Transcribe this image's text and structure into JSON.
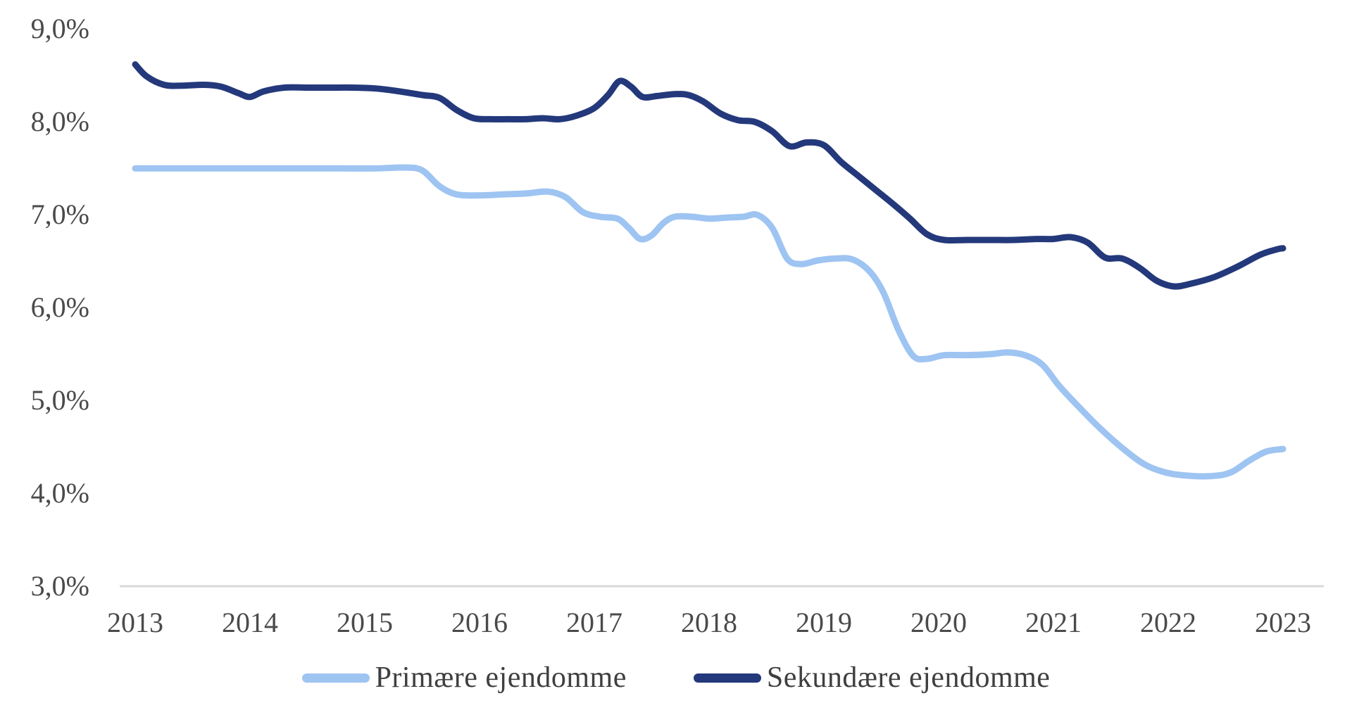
{
  "chart_data": {
    "type": "line",
    "title": "",
    "xlabel": "",
    "ylabel": "",
    "xlim": [
      2013,
      2023
    ],
    "ylim": [
      3.0,
      9.0
    ],
    "grid": false,
    "legend_position": "bottom-center",
    "axis_line_color": "#d9d9d9",
    "tick_label_color": "#4a4a4a",
    "x_ticks": {
      "values": [
        2013,
        2014,
        2015,
        2016,
        2017,
        2018,
        2019,
        2020,
        2021,
        2022,
        2023
      ],
      "labels": [
        "2013",
        "2014",
        "2015",
        "2016",
        "2017",
        "2018",
        "2019",
        "2020",
        "2021",
        "2022",
        "2023"
      ]
    },
    "y_ticks": {
      "values": [
        9,
        8,
        7,
        6,
        5,
        4,
        3
      ],
      "labels": [
        "9,0%",
        "8,0%",
        "7,0%",
        "6,0%",
        "5,0%",
        "4,0%",
        "3,0%"
      ]
    },
    "series": [
      {
        "name": "Primære ejendomme",
        "color": "#9ec4f2",
        "smooth": true,
        "points": [
          [
            2013.0,
            7.49
          ],
          [
            2013.3,
            7.49
          ],
          [
            2013.6,
            7.49
          ],
          [
            2013.9,
            7.49
          ],
          [
            2014.2,
            7.49
          ],
          [
            2014.5,
            7.49
          ],
          [
            2014.8,
            7.49
          ],
          [
            2015.1,
            7.49
          ],
          [
            2015.35,
            7.5
          ],
          [
            2015.5,
            7.47
          ],
          [
            2015.65,
            7.3
          ],
          [
            2015.8,
            7.21
          ],
          [
            2016.0,
            7.2
          ],
          [
            2016.2,
            7.21
          ],
          [
            2016.4,
            7.22
          ],
          [
            2016.6,
            7.24
          ],
          [
            2016.75,
            7.18
          ],
          [
            2016.9,
            7.02
          ],
          [
            2017.05,
            6.97
          ],
          [
            2017.2,
            6.95
          ],
          [
            2017.3,
            6.85
          ],
          [
            2017.4,
            6.73
          ],
          [
            2017.5,
            6.77
          ],
          [
            2017.6,
            6.9
          ],
          [
            2017.7,
            6.97
          ],
          [
            2017.85,
            6.97
          ],
          [
            2018.0,
            6.95
          ],
          [
            2018.15,
            6.96
          ],
          [
            2018.3,
            6.97
          ],
          [
            2018.42,
            6.99
          ],
          [
            2018.55,
            6.85
          ],
          [
            2018.68,
            6.52
          ],
          [
            2018.8,
            6.46
          ],
          [
            2018.95,
            6.5
          ],
          [
            2019.1,
            6.52
          ],
          [
            2019.25,
            6.51
          ],
          [
            2019.4,
            6.38
          ],
          [
            2019.52,
            6.15
          ],
          [
            2019.65,
            5.75
          ],
          [
            2019.78,
            5.47
          ],
          [
            2019.9,
            5.44
          ],
          [
            2020.05,
            5.48
          ],
          [
            2020.25,
            5.48
          ],
          [
            2020.45,
            5.49
          ],
          [
            2020.6,
            5.51
          ],
          [
            2020.75,
            5.48
          ],
          [
            2020.9,
            5.38
          ],
          [
            2021.05,
            5.15
          ],
          [
            2021.2,
            4.95
          ],
          [
            2021.4,
            4.7
          ],
          [
            2021.6,
            4.48
          ],
          [
            2021.8,
            4.3
          ],
          [
            2022.0,
            4.21
          ],
          [
            2022.2,
            4.18
          ],
          [
            2022.4,
            4.18
          ],
          [
            2022.55,
            4.22
          ],
          [
            2022.7,
            4.34
          ],
          [
            2022.85,
            4.44
          ],
          [
            2023.0,
            4.47
          ]
        ]
      },
      {
        "name": "Sekundære ejendomme",
        "color": "#24397b",
        "smooth": true,
        "points": [
          [
            2013.0,
            8.61
          ],
          [
            2013.1,
            8.48
          ],
          [
            2013.25,
            8.39
          ],
          [
            2013.4,
            8.38
          ],
          [
            2013.6,
            8.39
          ],
          [
            2013.75,
            8.37
          ],
          [
            2013.9,
            8.3
          ],
          [
            2014.0,
            8.26
          ],
          [
            2014.12,
            8.32
          ],
          [
            2014.3,
            8.36
          ],
          [
            2014.5,
            8.36
          ],
          [
            2014.7,
            8.36
          ],
          [
            2014.9,
            8.36
          ],
          [
            2015.1,
            8.35
          ],
          [
            2015.3,
            8.32
          ],
          [
            2015.5,
            8.28
          ],
          [
            2015.65,
            8.25
          ],
          [
            2015.8,
            8.12
          ],
          [
            2015.95,
            8.03
          ],
          [
            2016.1,
            8.02
          ],
          [
            2016.25,
            8.02
          ],
          [
            2016.4,
            8.02
          ],
          [
            2016.55,
            8.03
          ],
          [
            2016.7,
            8.02
          ],
          [
            2016.85,
            8.06
          ],
          [
            2017.0,
            8.14
          ],
          [
            2017.12,
            8.28
          ],
          [
            2017.22,
            8.43
          ],
          [
            2017.32,
            8.37
          ],
          [
            2017.42,
            8.26
          ],
          [
            2017.55,
            8.27
          ],
          [
            2017.7,
            8.29
          ],
          [
            2017.82,
            8.28
          ],
          [
            2017.95,
            8.21
          ],
          [
            2018.1,
            8.08
          ],
          [
            2018.25,
            8.01
          ],
          [
            2018.4,
            7.99
          ],
          [
            2018.55,
            7.89
          ],
          [
            2018.7,
            7.73
          ],
          [
            2018.85,
            7.77
          ],
          [
            2019.0,
            7.74
          ],
          [
            2019.15,
            7.56
          ],
          [
            2019.3,
            7.41
          ],
          [
            2019.45,
            7.26
          ],
          [
            2019.6,
            7.11
          ],
          [
            2019.75,
            6.95
          ],
          [
            2019.9,
            6.78
          ],
          [
            2020.05,
            6.72
          ],
          [
            2020.25,
            6.72
          ],
          [
            2020.45,
            6.72
          ],
          [
            2020.65,
            6.72
          ],
          [
            2020.85,
            6.73
          ],
          [
            2021.0,
            6.73
          ],
          [
            2021.15,
            6.75
          ],
          [
            2021.3,
            6.69
          ],
          [
            2021.45,
            6.53
          ],
          [
            2021.6,
            6.52
          ],
          [
            2021.75,
            6.42
          ],
          [
            2021.9,
            6.28
          ],
          [
            2022.05,
            6.22
          ],
          [
            2022.2,
            6.25
          ],
          [
            2022.4,
            6.32
          ],
          [
            2022.6,
            6.43
          ],
          [
            2022.8,
            6.56
          ],
          [
            2022.95,
            6.62
          ],
          [
            2023.0,
            6.63
          ]
        ]
      }
    ]
  }
}
